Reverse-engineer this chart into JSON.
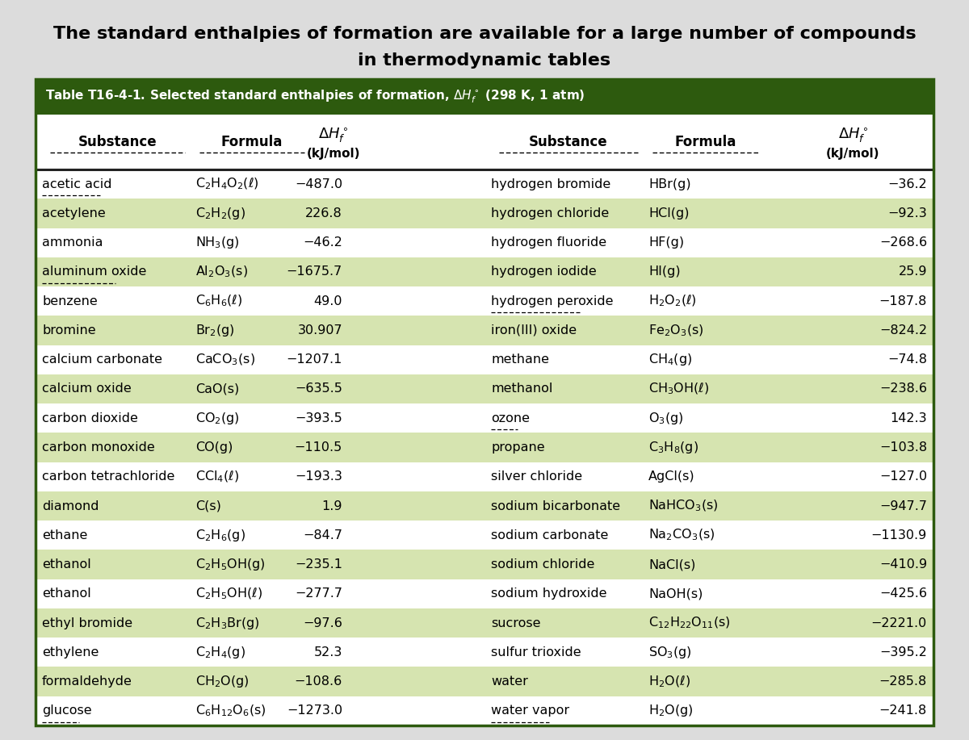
{
  "title_line1": "The standard enthalpies of formation are available for a large number of compounds",
  "title_line2": "in thermodynamic tables",
  "bg_color": "#dcdcdc",
  "header_bg": "#2d5a0e",
  "table_bg": "#ffffff",
  "row_colors": [
    "#ffffff",
    "#d6e4b0",
    "#ffffff",
    "#d6e4b0",
    "#ffffff",
    "#d6e4b0",
    "#ffffff",
    "#d6e4b0",
    "#ffffff",
    "#d6e4b0",
    "#ffffff",
    "#d6e4b0",
    "#ffffff",
    "#d6e4b0",
    "#ffffff",
    "#d6e4b0",
    "#ffffff",
    "#d6e4b0",
    "#ffffff"
  ],
  "rows_left": [
    [
      "acetic acid",
      "C$_2$H$_4$O$_2$($\\ell$)",
      "−487.0"
    ],
    [
      "acetylene",
      "C$_2$H$_2$(g)",
      "226.8"
    ],
    [
      "ammonia",
      "NH$_3$(g)",
      "−46.2"
    ],
    [
      "aluminum oxide",
      "Al$_2$O$_3$(s)",
      "−1675.7"
    ],
    [
      "benzene",
      "C$_6$H$_6$($\\ell$)",
      "49.0"
    ],
    [
      "bromine",
      "Br$_2$(g)",
      "30.907"
    ],
    [
      "calcium carbonate",
      "CaCO$_3$(s)",
      "−1207.1"
    ],
    [
      "calcium oxide",
      "CaO(s)",
      "−635.5"
    ],
    [
      "carbon dioxide",
      "CO$_2$(g)",
      "−393.5"
    ],
    [
      "carbon monoxide",
      "CO(g)",
      "−110.5"
    ],
    [
      "carbon tetrachloride",
      "CCl$_4$($\\ell$)",
      "−193.3"
    ],
    [
      "diamond",
      "C(s)",
      "1.9"
    ],
    [
      "ethane",
      "C$_2$H$_6$(g)",
      "−84.7"
    ],
    [
      "ethanol",
      "C$_2$H$_5$OH(g)",
      "−235.1"
    ],
    [
      "ethanol",
      "C$_2$H$_5$OH($\\ell$)",
      "−277.7"
    ],
    [
      "ethyl bromide",
      "C$_2$H$_3$Br(g)",
      "−97.6"
    ],
    [
      "ethylene",
      "C$_2$H$_4$(g)",
      "52.3"
    ],
    [
      "formaldehyde",
      "CH$_2$O(g)",
      "−108.6"
    ],
    [
      "glucose",
      "C$_6$H$_{12}$O$_6$(s)",
      "−1273.0"
    ]
  ],
  "rows_right": [
    [
      "hydrogen bromide",
      "HBr(g)",
      "−36.2"
    ],
    [
      "hydrogen chloride",
      "HCl(g)",
      "−92.3"
    ],
    [
      "hydrogen fluoride",
      "HF(g)",
      "−268.6"
    ],
    [
      "hydrogen iodide",
      "HI(g)",
      "25.9"
    ],
    [
      "hydrogen peroxide",
      "H$_2$O$_2$($\\ell$)",
      "−187.8"
    ],
    [
      "iron(III) oxide",
      "Fe$_2$O$_3$(s)",
      "−824.2"
    ],
    [
      "methane",
      "CH$_4$(g)",
      "−74.8"
    ],
    [
      "methanol",
      "CH$_3$OH($\\ell$)",
      "−238.6"
    ],
    [
      "ozone",
      "O$_3$(g)",
      "142.3"
    ],
    [
      "propane",
      "C$_3$H$_8$(g)",
      "−103.8"
    ],
    [
      "silver chloride",
      "AgCl(s)",
      "−127.0"
    ],
    [
      "sodium bicarbonate",
      "NaHCO$_3$(s)",
      "−947.7"
    ],
    [
      "sodium carbonate",
      "Na$_2$CO$_3$(s)",
      "−1130.9"
    ],
    [
      "sodium chloride",
      "NaCl(s)",
      "−410.9"
    ],
    [
      "sodium hydroxide",
      "NaOH(s)",
      "−425.6"
    ],
    [
      "sucrose",
      "C$_{12}$H$_{22}$O$_{11}$(s)",
      "−2221.0"
    ],
    [
      "sulfur trioxide",
      "SO$_3$(g)",
      "−395.2"
    ],
    [
      "water",
      "H$_2$O($\\ell$)",
      "−285.8"
    ],
    [
      "water vapor",
      "H$_2$O(g)",
      "−241.8"
    ]
  ],
  "underlined_left": [
    "acetic acid",
    "aluminum oxide",
    "glucose"
  ],
  "underlined_right": [
    "hydrogen peroxide",
    "ozone",
    "water vapor"
  ],
  "title_fontsize": 16,
  "body_fontsize": 11.5
}
